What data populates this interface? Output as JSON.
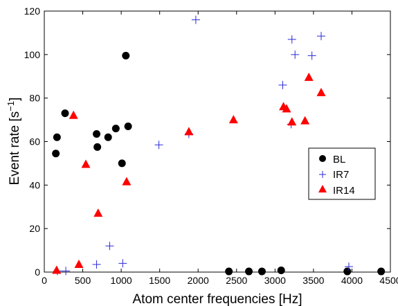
{
  "chart_data": {
    "type": "scatter",
    "title": "",
    "xlabel": "Atom center frequencies [Hz]",
    "ylabel_main": "Event rate [s",
    "ylabel_sup": "−1",
    "ylabel_close": "]",
    "xlim": [
      0,
      4500
    ],
    "ylim": [
      0,
      120
    ],
    "xticks": [
      0,
      500,
      1000,
      1500,
      2000,
      2500,
      3000,
      3500,
      4000,
      4500
    ],
    "yticks": [
      0,
      20,
      40,
      60,
      80,
      100,
      120
    ],
    "grid": false,
    "legend_position": "right",
    "series": [
      {
        "name": "BL",
        "marker": "circle",
        "color": "#000000",
        "points": [
          [
            150,
            54.5
          ],
          [
            165,
            62
          ],
          [
            270,
            73
          ],
          [
            680,
            63.5
          ],
          [
            690,
            57.5
          ],
          [
            830,
            62
          ],
          [
            930,
            66
          ],
          [
            1010,
            50
          ],
          [
            1060,
            99.5
          ],
          [
            1090,
            67
          ],
          [
            2400,
            0.3
          ],
          [
            2660,
            0.3
          ],
          [
            2830,
            0.3
          ],
          [
            3080,
            0.8
          ],
          [
            3940,
            0.3
          ],
          [
            4380,
            0.3
          ]
        ]
      },
      {
        "name": "IR7",
        "marker": "plus",
        "color": "#2a2ad6",
        "points": [
          [
            170,
            0.5
          ],
          [
            280,
            0.5
          ],
          [
            680,
            3.5
          ],
          [
            850,
            12
          ],
          [
            1020,
            4
          ],
          [
            1490,
            58.5
          ],
          [
            1880,
            63.5
          ],
          [
            1970,
            116
          ],
          [
            3100,
            86
          ],
          [
            3210,
            68
          ],
          [
            3220,
            107
          ],
          [
            3260,
            100
          ],
          [
            3480,
            99.5
          ],
          [
            3600,
            108.5
          ],
          [
            3960,
            2.5
          ]
        ]
      },
      {
        "name": "IR14",
        "marker": "triangle",
        "color": "#ff0000",
        "points": [
          [
            160,
            0.8
          ],
          [
            380,
            72
          ],
          [
            450,
            3.5
          ],
          [
            540,
            49.5
          ],
          [
            700,
            27
          ],
          [
            1070,
            41.5
          ],
          [
            1880,
            64.5
          ],
          [
            2460,
            70
          ],
          [
            3110,
            76
          ],
          [
            3150,
            75
          ],
          [
            3220,
            69
          ],
          [
            3390,
            69.5
          ],
          [
            3440,
            89.5
          ],
          [
            3600,
            82.5
          ]
        ]
      }
    ]
  }
}
